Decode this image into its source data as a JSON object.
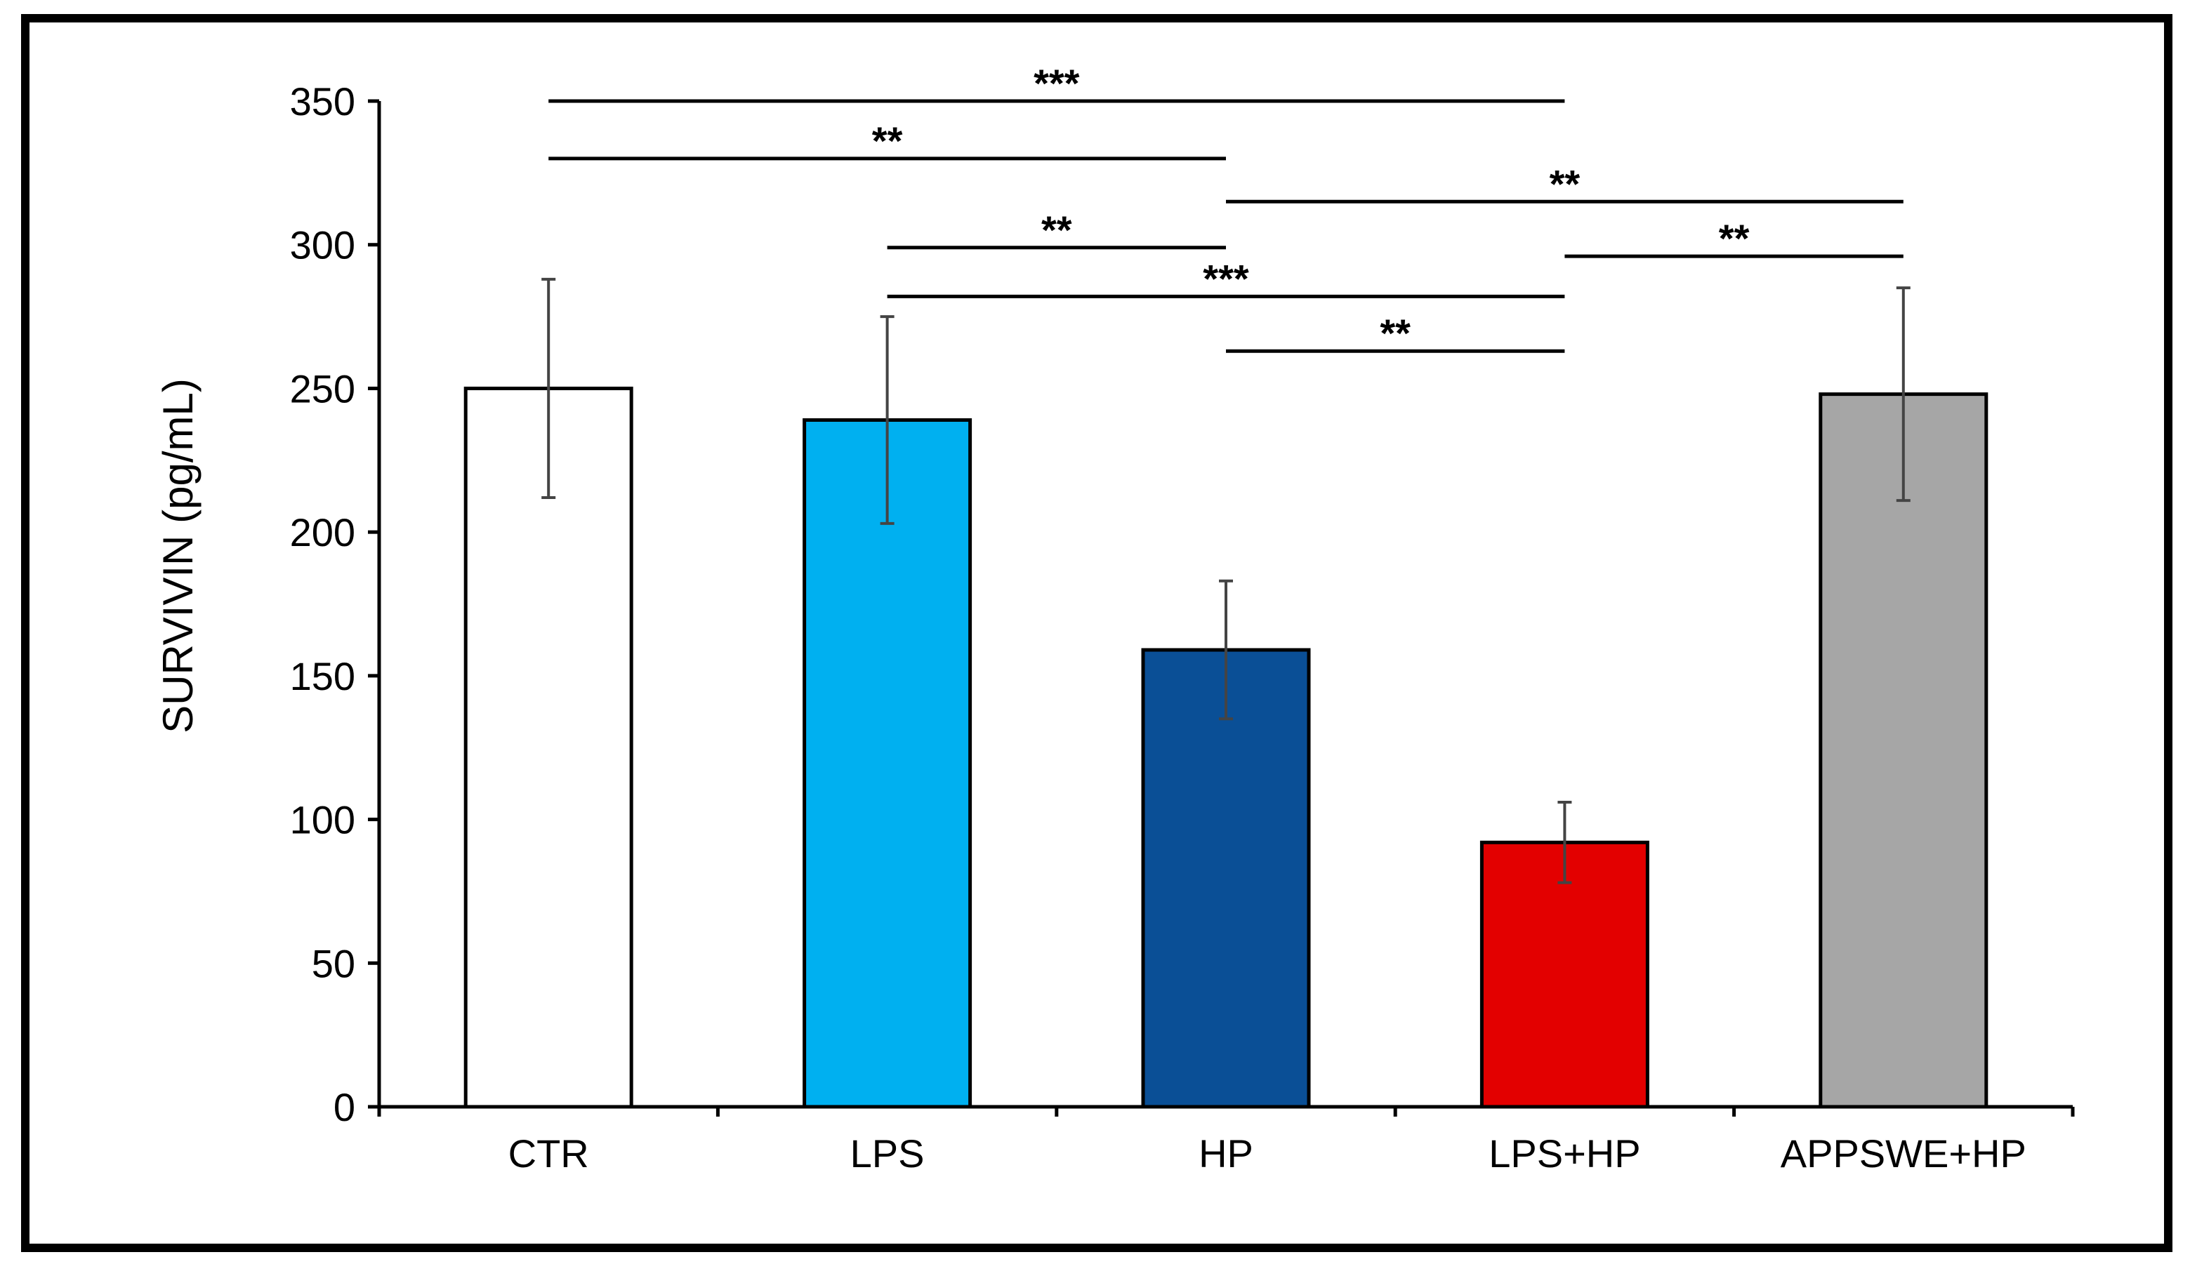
{
  "chart_data": {
    "type": "bar",
    "title": "",
    "xlabel": "",
    "ylabel": "SURVIVIN (pg/mL)",
    "categories": [
      "CTR",
      "LPS",
      "HP",
      "LPS+HP",
      "APPSWE+HP"
    ],
    "values": [
      250,
      239,
      159,
      92,
      248
    ],
    "error": [
      38,
      36,
      24,
      14,
      37
    ],
    "colors": [
      "#ffffff",
      "#00b0f0",
      "#0a4f96",
      "#e30000",
      "#a6a6a6"
    ],
    "ylim": [
      0,
      350
    ],
    "yticks": [
      "0",
      "50",
      "100",
      "150",
      "200",
      "250",
      "300",
      "350"
    ],
    "grid": false,
    "significance": [
      {
        "from": 0,
        "to": 3,
        "label": "***",
        "level": 350
      },
      {
        "from": 0,
        "to": 2,
        "label": "**",
        "level": 330
      },
      {
        "from": 2,
        "to": 4,
        "label": "**",
        "level": 315
      },
      {
        "from": 1,
        "to": 2,
        "label": "**",
        "level": 299
      },
      {
        "from": 3,
        "to": 4,
        "label": "**",
        "level": 296
      },
      {
        "from": 1,
        "to": 3,
        "label": "***",
        "level": 282
      },
      {
        "from": 2,
        "to": 3,
        "label": "**",
        "level": 263
      }
    ]
  }
}
